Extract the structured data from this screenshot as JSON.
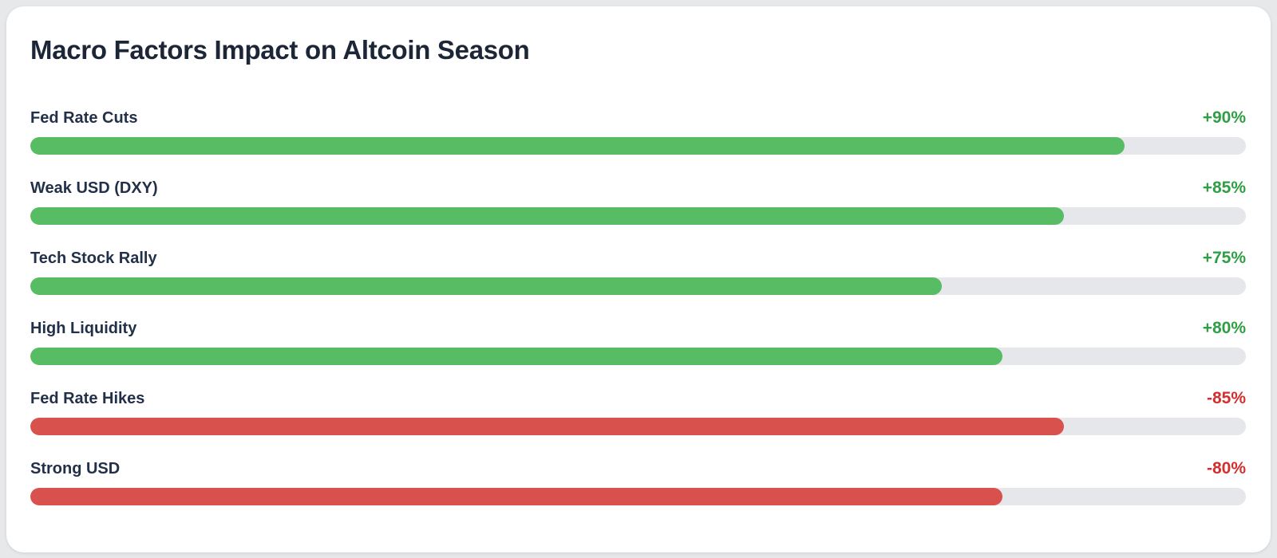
{
  "chart_data": {
    "type": "bar",
    "orientation": "horizontal",
    "title": "Macro Factors Impact on Altcoin Season",
    "categories": [
      "Fed Rate Cuts",
      "Weak USD (DXY)",
      "Tech Stock Rally",
      "High Liquidity",
      "Fed Rate Hikes",
      "Strong USD"
    ],
    "values": [
      90,
      85,
      75,
      80,
      -85,
      -80
    ],
    "value_labels": [
      "+90%",
      "+85%",
      "+75%",
      "+80%",
      "-85%",
      "-80%"
    ],
    "xlim": [
      0,
      100
    ],
    "grid": false,
    "legend": false,
    "layout": "label above bar, value right-aligned, full-width pill track"
  },
  "colors": {
    "page_background": "#e7e8ea",
    "card_background": "#ffffff",
    "title_text": "#1c2636",
    "label_text": "#233049",
    "track": "#e5e7eb",
    "positive_bar": "#58bc64",
    "positive_text": "#2f9e44",
    "negative_bar": "#d9514d",
    "negative_text": "#d32f2f"
  }
}
